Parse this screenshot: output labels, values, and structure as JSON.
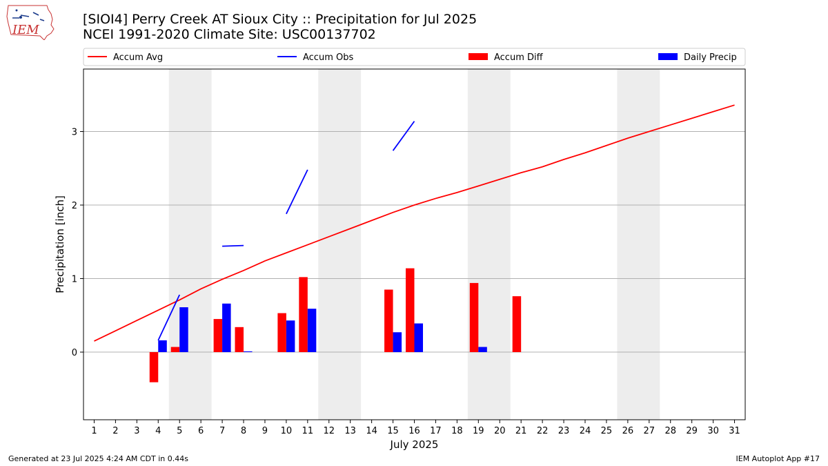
{
  "header": {
    "title_line1": "[SIOI4] Perry Creek  AT Sioux City :: Precipitation for Jul 2025",
    "title_line2": "NCEI 1991-2020 Climate Site: USC00137702",
    "logo_text": "IEM"
  },
  "footer": {
    "generated": "Generated at 23 Jul 2025 4:24 AM CDT in 0.44s",
    "app": "IEM Autoplot App #17"
  },
  "chart_data": {
    "type": "bar",
    "xlabel": "July 2025",
    "ylabel": "Precipitation [inch]",
    "x": [
      1,
      2,
      3,
      4,
      5,
      6,
      7,
      8,
      9,
      10,
      11,
      12,
      13,
      14,
      15,
      16,
      17,
      18,
      19,
      20,
      21,
      22,
      23,
      24,
      25,
      26,
      27,
      28,
      29,
      30,
      31
    ],
    "xlim": [
      0.5,
      31.5
    ],
    "ylim": [
      -0.92,
      3.85
    ],
    "yticks": [
      0,
      1,
      2,
      3
    ],
    "grid": "horizontal",
    "legend_position": "top",
    "weekend_shading": [
      [
        4.5,
        6.5
      ],
      [
        11.5,
        13.5
      ],
      [
        18.5,
        20.5
      ],
      [
        25.5,
        27.5
      ]
    ],
    "series": [
      {
        "name": "Accum Avg",
        "kind": "line",
        "color": "#ff0000",
        "values": [
          0.15,
          0.29,
          0.43,
          0.57,
          0.71,
          0.86,
          0.99,
          1.11,
          1.24,
          1.35,
          1.46,
          1.57,
          1.68,
          1.79,
          1.9,
          2.0,
          2.09,
          2.17,
          2.26,
          2.35,
          2.44,
          2.52,
          2.62,
          2.71,
          2.81,
          2.91,
          3.0,
          3.09,
          3.18,
          3.27,
          3.36
        ]
      },
      {
        "name": "Accum Obs",
        "kind": "line",
        "color": "#0000ff",
        "values": [
          null,
          null,
          null,
          0.16,
          0.78,
          null,
          1.44,
          1.45,
          null,
          1.88,
          2.48,
          null,
          null,
          null,
          2.74,
          3.14,
          null,
          null,
          null,
          null,
          null,
          null,
          null,
          null,
          null,
          null,
          null,
          null,
          null,
          null,
          null
        ]
      },
      {
        "name": "Accum Diff",
        "kind": "bar",
        "color": "#ff0000",
        "values": [
          null,
          null,
          null,
          -0.41,
          0.07,
          null,
          0.45,
          0.34,
          null,
          0.53,
          1.02,
          null,
          null,
          null,
          0.85,
          1.14,
          null,
          null,
          0.94,
          null,
          0.76,
          null,
          null,
          null,
          null,
          null,
          null,
          null,
          null,
          null,
          null
        ]
      },
      {
        "name": "Daily Precip",
        "kind": "bar",
        "color": "#0000ff",
        "values": [
          null,
          null,
          null,
          0.16,
          0.61,
          null,
          0.66,
          0.01,
          null,
          0.43,
          0.59,
          null,
          null,
          null,
          0.27,
          0.39,
          null,
          null,
          0.07,
          null,
          null,
          null,
          null,
          null,
          null,
          null,
          null,
          null,
          null,
          null,
          null
        ]
      }
    ]
  }
}
